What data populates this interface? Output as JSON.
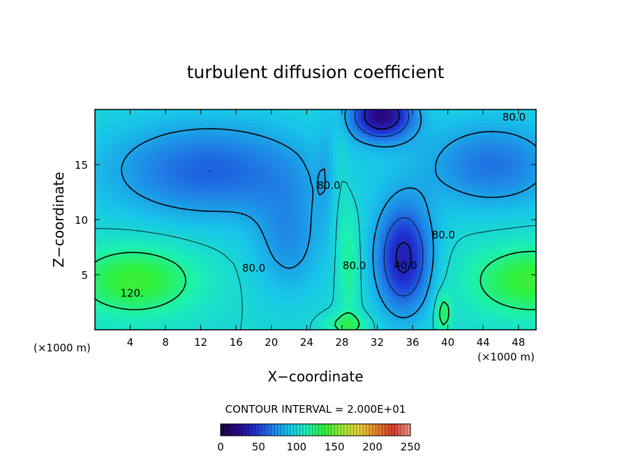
{
  "chart_data": {
    "type": "heatmap",
    "title": "turbulent diffusion coefficient",
    "xlabel": "X−coordinate",
    "ylabel": "Z−coordinate",
    "x_unit_left": "(×1000 m)",
    "x_unit_right": "(×1000 m)",
    "xlim": [
      0,
      50
    ],
    "ylim": [
      0,
      20
    ],
    "x_ticks": [
      4,
      8,
      12,
      16,
      20,
      24,
      28,
      32,
      36,
      40,
      44,
      48
    ],
    "y_ticks": [
      5,
      10,
      15
    ],
    "contour_interval_text": "CONTOUR INTERVAL = 2.000E+01",
    "contour_labels": [
      {
        "text": "120.",
        "x": 4.2,
        "z": 3.0
      },
      {
        "text": "80.0",
        "x": 18.0,
        "z": 5.3
      },
      {
        "text": "80.0",
        "x": 26.5,
        "z": 12.8
      },
      {
        "text": "80.0",
        "x": 29.4,
        "z": 5.5
      },
      {
        "text": "40.0",
        "x": 35.2,
        "z": 5.5
      },
      {
        "text": "80.0",
        "x": 39.5,
        "z": 8.3
      },
      {
        "text": "80.0",
        "x": 47.5,
        "z": 19.0
      }
    ],
    "colorbar": {
      "range": [
        0,
        250
      ],
      "ticks": [
        0,
        50,
        100,
        150,
        200,
        250
      ],
      "colors": [
        "#1a0040",
        "#2a0a8a",
        "#1f2fd0",
        "#1f7fe6",
        "#18c6e8",
        "#1cf0b4",
        "#2ef03a",
        "#9be83a",
        "#e6d23a",
        "#e8842a",
        "#d83a2a",
        "#e89a8a"
      ]
    }
  }
}
